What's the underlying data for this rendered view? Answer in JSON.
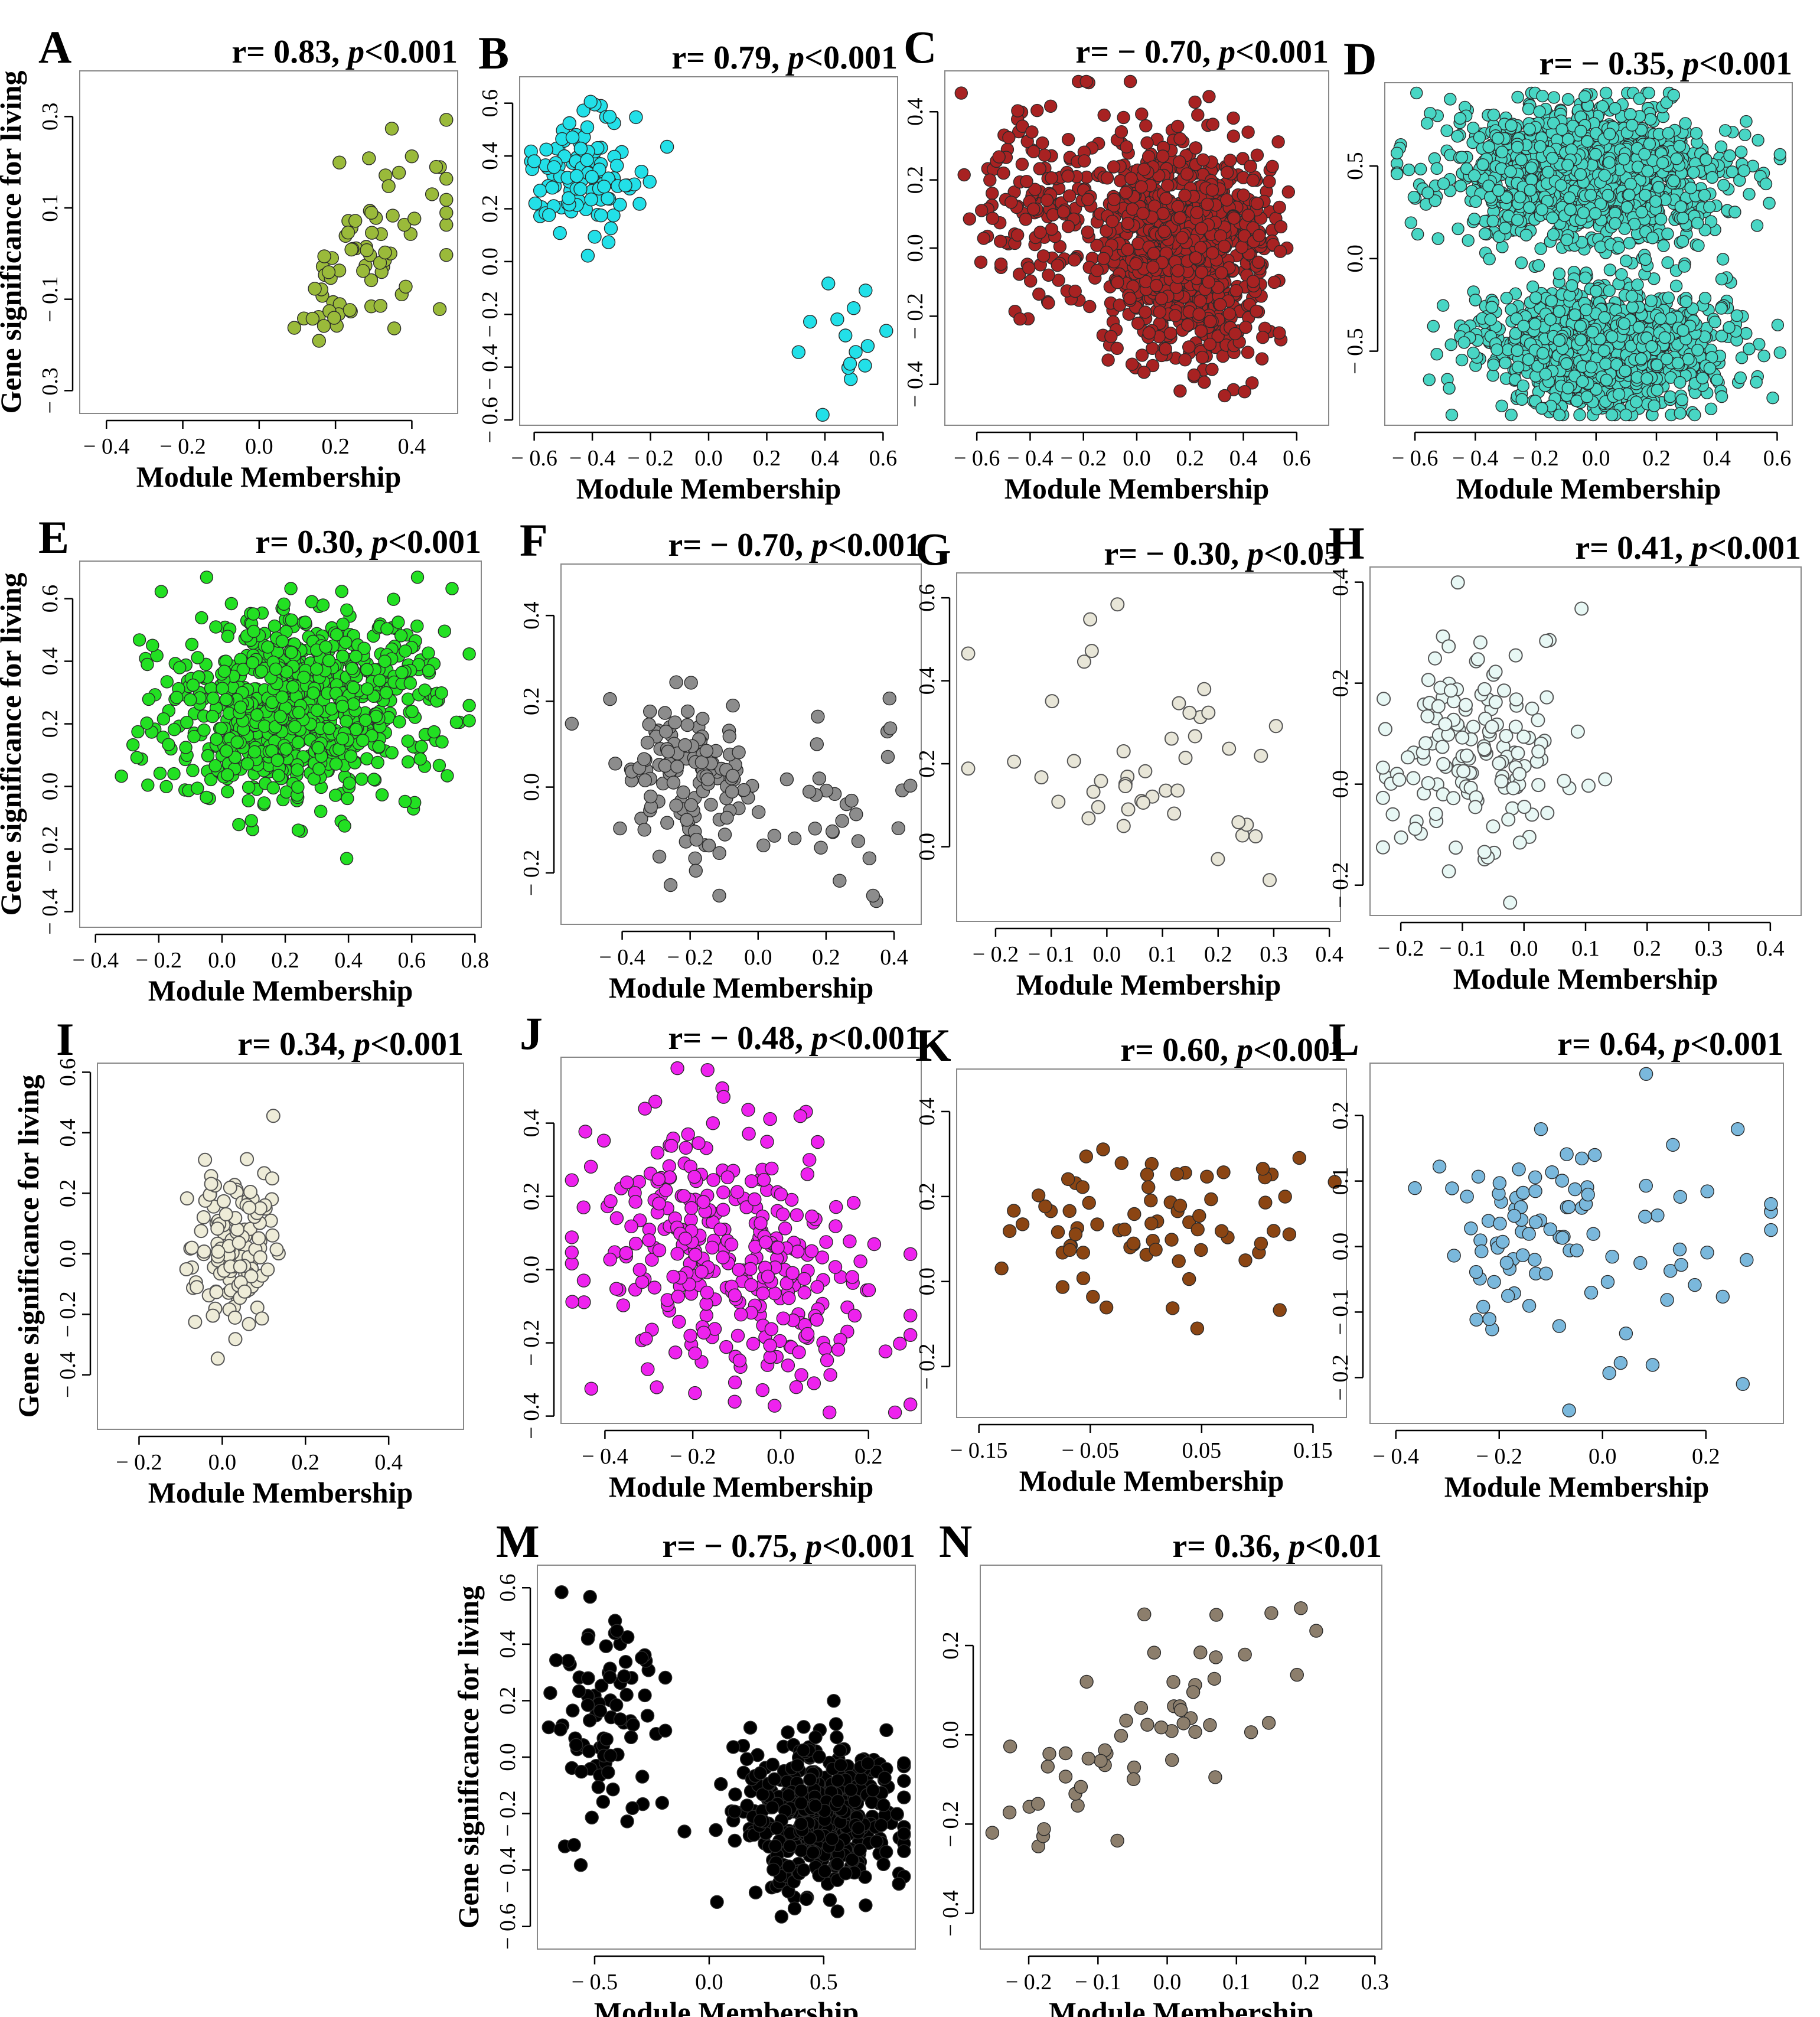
{
  "figure": {
    "y_axis_label": "Gene significance for living",
    "x_axis_label": "Module Membership"
  },
  "chart_data": [
    {
      "id": "A",
      "type": "scatter",
      "letter": "A",
      "r": "r= 0.83,",
      "p": "p",
      "pval": "<0.001",
      "xlabel": "Module Membership",
      "ylabel": "Gene significance for living",
      "color": "#9aba3a",
      "hollow": false,
      "xlim": [
        -0.47,
        0.52
      ],
      "ylim": [
        -0.35,
        0.4
      ],
      "xticks": [
        -0.4,
        -0.2,
        0.0,
        0.2,
        0.4
      ],
      "xticklabels": [
        "− 0.4",
        "− 0.2",
        "0.0",
        "0.2",
        "0.4"
      ],
      "yticks": [
        -0.3,
        -0.1,
        0.1,
        0.3
      ],
      "yticklabels": [
        "− 0.3",
        "− 0.1",
        "0.1",
        "0.3"
      ],
      "n": 75,
      "seed": 11,
      "clusters": [
        [
          0.28,
          0.02,
          0.12,
          0.12,
          0.85
        ]
      ],
      "corr": 0.55
    },
    {
      "id": "B",
      "type": "scatter",
      "letter": "B",
      "r": "r= 0.79,",
      "p": "p",
      "pval": "<0.001",
      "xlabel": "Module Membership",
      "ylabel": "",
      "color": "#22e0e8",
      "hollow": false,
      "xlim": [
        -0.65,
        0.65
      ],
      "ylim": [
        -0.62,
        0.7
      ],
      "xticks": [
        -0.6,
        -0.4,
        -0.2,
        0.0,
        0.2,
        0.4,
        0.6
      ],
      "xticklabels": [
        "− 0.6",
        "− 0.4",
        "− 0.2",
        "0.0",
        "0.2",
        "0.4",
        "0.6"
      ],
      "yticks": [
        -0.6,
        -0.4,
        -0.2,
        0.0,
        0.2,
        0.4,
        0.6
      ],
      "yticklabels": [
        "− 0.6",
        "− 0.4",
        "− 0.2",
        "0.0",
        "0.2",
        "0.4",
        "0.6"
      ],
      "n": 130,
      "seed": 23,
      "clusters": [
        [
          -0.42,
          0.32,
          0.09,
          0.11,
          0.85
        ],
        [
          0.45,
          -0.33,
          0.1,
          0.1,
          0.15
        ]
      ],
      "corr": 0.0
    },
    {
      "id": "C",
      "type": "scatter",
      "letter": "C",
      "r": "r= − 0.70,",
      "p": "p",
      "pval": "<0.001",
      "xlabel": "Module Membership",
      "ylabel": "",
      "color": "#a82222",
      "hollow": false,
      "xlim": [
        -0.72,
        0.72
      ],
      "ylim": [
        -0.52,
        0.52
      ],
      "xticks": [
        -0.6,
        -0.4,
        -0.2,
        0.0,
        0.2,
        0.4,
        0.6
      ],
      "xticklabels": [
        "− 0.6",
        "− 0.4",
        "− 0.2",
        "0.0",
        "0.2",
        "0.4",
        "0.6"
      ],
      "yticks": [
        -0.4,
        -0.2,
        0.0,
        0.2,
        0.4
      ],
      "yticklabels": [
        "− 0.4",
        "− 0.2",
        "0.0",
        "0.2",
        "0.4"
      ],
      "n": 1100,
      "seed": 37,
      "clusters": [
        [
          0.18,
          0.0,
          0.16,
          0.15,
          0.85
        ],
        [
          -0.35,
          0.12,
          0.15,
          0.16,
          0.15
        ]
      ],
      "corr": -0.1
    },
    {
      "id": "D",
      "type": "scatter",
      "letter": "D",
      "r": "r= − 0.35,",
      "p": "p",
      "pval": "<0.001",
      "xlabel": "Module Membership",
      "ylabel": "",
      "color": "#48d6c4",
      "hollow": false,
      "xlim": [
        -0.7,
        0.65
      ],
      "ylim": [
        -0.9,
        0.95
      ],
      "xticks": [
        -0.6,
        -0.4,
        -0.2,
        0.0,
        0.2,
        0.4,
        0.6
      ],
      "xticklabels": [
        "− 0.6",
        "− 0.4",
        "− 0.2",
        "0.0",
        "0.2",
        "0.4",
        "0.6"
      ],
      "yticks": [
        -0.5,
        0.0,
        0.5
      ],
      "yticklabels": [
        "− 0.5",
        "0.0",
        "0.5"
      ],
      "n": 2600,
      "seed": 41,
      "clusters": [
        [
          -0.02,
          0.45,
          0.22,
          0.18,
          0.55
        ],
        [
          0.02,
          -0.48,
          0.2,
          0.17,
          0.45
        ]
      ],
      "corr": -0.05
    },
    {
      "id": "E",
      "type": "scatter",
      "letter": "E",
      "r": "r= 0.30,",
      "p": "p",
      "pval": "<0.001",
      "xlabel": "Module Membership",
      "ylabel": "Gene significance for living",
      "color": "#22e022",
      "hollow": false,
      "xlim": [
        -0.45,
        0.82
      ],
      "ylim": [
        -0.45,
        0.72
      ],
      "xticks": [
        -0.4,
        -0.2,
        0.0,
        0.2,
        0.4,
        0.6,
        0.8
      ],
      "xticklabels": [
        "− 0.4",
        "− 0.2",
        "0.0",
        "0.2",
        "0.4",
        "0.6",
        "0.8"
      ],
      "yticks": [
        -0.4,
        -0.2,
        0.0,
        0.2,
        0.4,
        0.6
      ],
      "yticklabels": [
        "− 0.4",
        "− 0.2",
        "0.0",
        "0.2",
        "0.4",
        "0.6"
      ],
      "n": 900,
      "seed": 53,
      "clusters": [
        [
          0.25,
          0.25,
          0.2,
          0.15,
          1.0
        ]
      ],
      "corr": 0.1
    },
    {
      "id": "F",
      "type": "scatter",
      "letter": "F",
      "r": "r= − 0.70,",
      "p": "p",
      "pval": "<0.001",
      "xlabel": "Module Membership",
      "ylabel": "",
      "color": "#8c8c8c",
      "hollow": false,
      "xlim": [
        -0.58,
        0.48
      ],
      "ylim": [
        -0.32,
        0.52
      ],
      "xticks": [
        -0.4,
        -0.2,
        0.0,
        0.2,
        0.4
      ],
      "xticklabels": [
        "− 0.4",
        "− 0.2",
        "0.0",
        "0.2",
        "0.4"
      ],
      "yticks": [
        -0.2,
        0.0,
        0.2,
        0.4
      ],
      "yticklabels": [
        "− 0.2",
        "0.0",
        "0.2",
        "0.4"
      ],
      "n": 160,
      "seed": 61,
      "clusters": [
        [
          -0.2,
          0.02,
          0.1,
          0.1,
          0.8
        ],
        [
          0.2,
          0.0,
          0.15,
          0.15,
          0.2
        ]
      ],
      "corr": -0.2
    },
    {
      "id": "G",
      "type": "scatter",
      "letter": "G",
      "r": "r= − 0.30,",
      "p": "p",
      "pval": "<0.05",
      "xlabel": "Module Membership",
      "ylabel": "",
      "color": "#e8e6d8",
      "hollow": true,
      "xlim": [
        -0.27,
        0.42
      ],
      "ylim": [
        -0.18,
        0.66
      ],
      "xticks": [
        -0.2,
        -0.1,
        0.0,
        0.1,
        0.2,
        0.3,
        0.4
      ],
      "xticklabels": [
        "− 0.2",
        "− 0.1",
        "0.0",
        "0.1",
        "0.2",
        "0.3",
        "0.4"
      ],
      "yticks": [
        0.0,
        0.2,
        0.4,
        0.6
      ],
      "yticklabels": [
        "0.0",
        "0.2",
        "0.4",
        "0.6"
      ],
      "n": 45,
      "seed": 71,
      "clusters": [
        [
          0.08,
          0.2,
          0.14,
          0.18,
          1.0
        ]
      ],
      "corr": -0.1
    },
    {
      "id": "H",
      "type": "scatter",
      "letter": "H",
      "r": "r= 0.41,",
      "p": "p",
      "pval": "<0.001",
      "xlabel": "Module Membership",
      "ylabel": "",
      "color": "#e8f8f5",
      "hollow": true,
      "xlim": [
        -0.25,
        0.45
      ],
      "ylim": [
        -0.26,
        0.43
      ],
      "xticks": [
        -0.2,
        -0.1,
        0.0,
        0.1,
        0.2,
        0.3,
        0.4
      ],
      "xticklabels": [
        "− 0.2",
        "− 0.1",
        "0.0",
        "0.1",
        "0.2",
        "0.3",
        "0.4"
      ],
      "yticks": [
        -0.2,
        0.0,
        0.2,
        0.4
      ],
      "yticklabels": [
        "− 0.2",
        "0.0",
        "0.2",
        "0.4"
      ],
      "n": 150,
      "seed": 83,
      "clusters": [
        [
          -0.08,
          0.06,
          0.07,
          0.11,
          1.0
        ]
      ],
      "corr": 0.1
    },
    {
      "id": "I",
      "type": "scatter",
      "letter": "I",
      "r": "r= 0.34,",
      "p": "p",
      "pval": "<0.001",
      "xlabel": "Module Membership",
      "ylabel": "Gene significance for living",
      "color": "#eeecd8",
      "hollow": true,
      "xlim": [
        -0.3,
        0.58
      ],
      "ylim": [
        -0.58,
        0.63
      ],
      "xticks": [
        -0.2,
        0.0,
        0.2,
        0.4
      ],
      "xticklabels": [
        "− 0.2",
        "0.0",
        "0.2",
        "0.4"
      ],
      "yticks": [
        -0.4,
        -0.2,
        0.0,
        0.2,
        0.4,
        0.6
      ],
      "yticklabels": [
        "− 0.4",
        "− 0.2",
        "0.0",
        "0.2",
        "0.4",
        "0.6"
      ],
      "n": 130,
      "seed": 97,
      "clusters": [
        [
          0.02,
          0.0,
          0.05,
          0.14,
          1.0
        ]
      ],
      "corr": 0.1
    },
    {
      "id": "J",
      "type": "scatter",
      "letter": "J",
      "r": "r= − 0.48,",
      "p": "p",
      "pval": "<0.001",
      "xlabel": "Module Membership",
      "ylabel": "",
      "color": "#ee22ee",
      "hollow": false,
      "xlim": [
        -0.5,
        0.32
      ],
      "ylim": [
        -0.42,
        0.58
      ],
      "xticks": [
        -0.4,
        -0.2,
        0.0,
        0.2
      ],
      "xticklabels": [
        "− 0.4",
        "− 0.2",
        "0.0",
        "0.2"
      ],
      "yticks": [
        -0.4,
        -0.2,
        0.0,
        0.2,
        0.4
      ],
      "yticklabels": [
        "− 0.4",
        "− 0.2",
        "0.0",
        "0.2",
        "0.4"
      ],
      "n": 330,
      "seed": 101,
      "clusters": [
        [
          -0.12,
          0.05,
          0.17,
          0.18,
          1.0
        ]
      ],
      "corr": -0.3
    },
    {
      "id": "K",
      "type": "scatter",
      "letter": "K",
      "r": "r= 0.60,",
      "p": "p",
      "pval": "<0.001",
      "xlabel": "Module Membership",
      "ylabel": "",
      "color": "#8b4513",
      "hollow": false,
      "xlim": [
        -0.17,
        0.18
      ],
      "ylim": [
        -0.32,
        0.5
      ],
      "xticks": [
        -0.15,
        -0.05,
        0.05,
        0.15
      ],
      "xticklabels": [
        "− 0.15",
        "− 0.05",
        "0.05",
        "0.15"
      ],
      "yticks": [
        -0.2,
        0.0,
        0.2,
        0.4
      ],
      "yticklabels": [
        "− 0.2",
        "0.0",
        "0.2",
        "0.4"
      ],
      "n": 75,
      "seed": 113,
      "clusters": [
        [
          -0.06,
          0.15,
          0.04,
          0.08,
          0.6
        ],
        [
          0.05,
          0.15,
          0.05,
          0.12,
          0.4
        ]
      ],
      "corr": 0.0
    },
    {
      "id": "L",
      "type": "scatter",
      "letter": "L",
      "r": "r= 0.64,",
      "p": "p",
      "pval": "<0.001",
      "xlabel": "Module Membership",
      "ylabel": "",
      "color": "#7ab8dc",
      "hollow": false,
      "xlim": [
        -0.45,
        0.35
      ],
      "ylim": [
        -0.27,
        0.28
      ],
      "xticks": [
        -0.4,
        -0.2,
        0.0,
        0.2
      ],
      "xticklabels": [
        "− 0.4",
        "− 0.2",
        "0.0",
        "0.2"
      ],
      "yticks": [
        -0.2,
        -0.1,
        0.0,
        0.1,
        0.2
      ],
      "yticklabels": [
        "− 0.2",
        "− 0.1",
        "0.0",
        "0.1",
        "0.2"
      ],
      "n": 100,
      "seed": 127,
      "clusters": [
        [
          -0.17,
          0.02,
          0.07,
          0.07,
          0.7
        ],
        [
          0.12,
          -0.02,
          0.12,
          0.12,
          0.3
        ]
      ],
      "corr": 0.1
    },
    {
      "id": "M",
      "type": "scatter",
      "letter": "M",
      "r": "r= − 0.75,",
      "p": "p",
      "pval": "<0.001",
      "xlabel": "Module Membership",
      "ylabel": "Gene significance for living",
      "color": "#000000",
      "hollow": false,
      "xlim": [
        -0.75,
        0.9
      ],
      "ylim": [
        -0.68,
        0.68
      ],
      "xticks": [
        -0.5,
        0.0,
        0.5
      ],
      "xticklabels": [
        "− 0.5",
        "0.0",
        "0.5"
      ],
      "yticks": [
        -0.6,
        -0.4,
        -0.2,
        0.0,
        0.2,
        0.4,
        0.6
      ],
      "yticklabels": [
        "− 0.6",
        "− 0.4",
        "− 0.2",
        "0.0",
        "0.2",
        "0.4",
        "0.6"
      ],
      "n": 520,
      "seed": 131,
      "clusters": [
        [
          0.5,
          -0.2,
          0.17,
          0.13,
          0.85
        ],
        [
          -0.45,
          0.15,
          0.12,
          0.2,
          0.15
        ]
      ],
      "corr": 0.0
    },
    {
      "id": "N",
      "type": "scatter",
      "letter": "N",
      "r": "r= 0.36,",
      "p": "p",
      "pval": "<0.01",
      "xlabel": "Module Membership",
      "ylabel": "",
      "color": "#8c7e6c",
      "hollow": false,
      "xlim": [
        -0.27,
        0.31
      ],
      "ylim": [
        -0.48,
        0.38
      ],
      "xticks": [
        -0.2,
        -0.1,
        0.0,
        0.1,
        0.2,
        0.3
      ],
      "xticklabels": [
        "− 0.2",
        "− 0.1",
        "0.0",
        "0.1",
        "0.2",
        "0.3"
      ],
      "yticks": [
        -0.4,
        -0.2,
        0.0,
        0.2
      ],
      "yticklabels": [
        "− 0.4",
        "− 0.2",
        "0.0",
        "0.2"
      ],
      "n": 55,
      "seed": 139,
      "clusters": [
        [
          -0.05,
          0.0,
          0.12,
          0.15,
          1.0
        ]
      ],
      "corr": 0.75
    }
  ]
}
